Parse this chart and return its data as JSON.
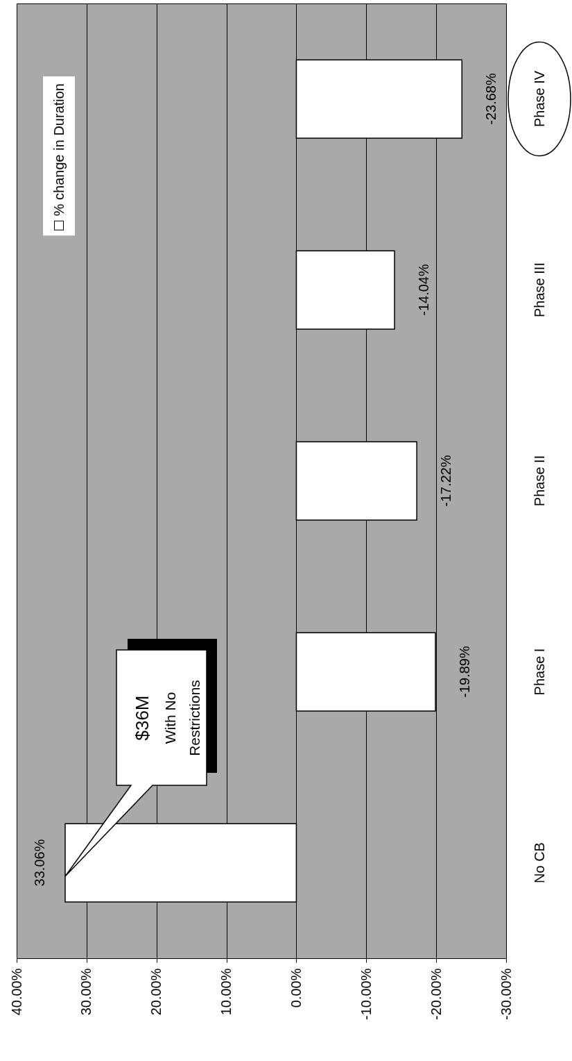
{
  "chart_data": {
    "type": "bar",
    "orientation": "horizontal",
    "categories": [
      "Phase IV",
      "Phase III",
      "Phase II",
      "Phase I",
      "No CB"
    ],
    "series": [
      {
        "name": "% change in Duration",
        "color": "#ffffff",
        "values": [
          -23.68,
          -14.04,
          -17.22,
          -19.89,
          33.06
        ],
        "value_labels": [
          "-23.68%",
          "-14.04%",
          "-17.22%",
          "-19.89%",
          "33.06%"
        ]
      }
    ],
    "xlim": [
      40,
      -30
    ],
    "xticks": [
      {
        "value": 40,
        "label": "40.00%"
      },
      {
        "value": 30,
        "label": "30.00%"
      },
      {
        "value": 20,
        "label": "20.00%"
      },
      {
        "value": 10,
        "label": "10.00%"
      },
      {
        "value": 0,
        "label": "0.00%"
      },
      {
        "value": -10,
        "label": "-10.00%"
      },
      {
        "value": -20,
        "label": "-20.00%"
      },
      {
        "value": -30,
        "label": "-30.00%"
      }
    ],
    "grid": "x",
    "legend": "top left",
    "annotations": [
      "$36M\nWith No\nRestrictions"
    ]
  }
}
